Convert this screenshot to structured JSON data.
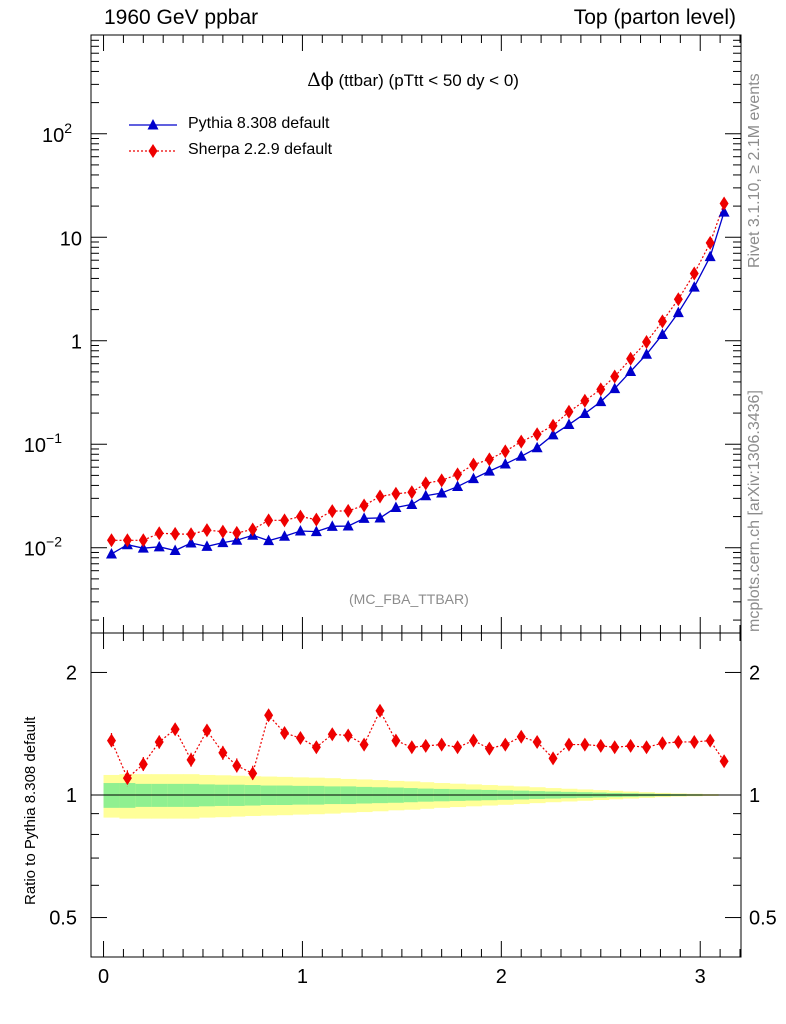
{
  "header": {
    "left": "1960 GeV ppbar",
    "right": "Top (parton level)"
  },
  "side_labels": {
    "rivet": "Rivet 3.1.10, ≥ 2.1M events",
    "mcplots": "mcplots.cern.ch [arXiv:1306.3436]"
  },
  "plot_title": {
    "symbol": "Δϕ",
    "text": " (ttbar) (pTtt < 50 dy < 0)"
  },
  "analysis_label": "(MC_FBA_TTBAR)",
  "ratio_ylabel": "Ratio to Pythia 8.308 default",
  "colors": {
    "pythia": "#0000cc",
    "sherpa": "#ee0000",
    "band_inner": "#90f090",
    "band_outer": "#ffff99"
  },
  "chart_data": [
    {
      "type": "line",
      "panel": "main",
      "yscale": "log",
      "xlim": [
        -0.063,
        3.205
      ],
      "ylim": [
        0.0015,
        900
      ],
      "x_ticks": [
        "0",
        "1",
        "2",
        "3"
      ],
      "y_ticks": [
        {
          "value": 0.01,
          "base": "10",
          "exp": "−2"
        },
        {
          "value": 0.1,
          "base": "10",
          "exp": "−1"
        },
        {
          "value": 1,
          "base": "1",
          "exp": ""
        },
        {
          "value": 10,
          "base": "10",
          "exp": ""
        },
        {
          "value": 100,
          "base": "10",
          "exp": "2"
        }
      ],
      "x": [
        0.04,
        0.12,
        0.2,
        0.28,
        0.36,
        0.44,
        0.52,
        0.6,
        0.67,
        0.75,
        0.83,
        0.91,
        0.99,
        1.07,
        1.15,
        1.23,
        1.31,
        1.39,
        1.47,
        1.55,
        1.62,
        1.7,
        1.78,
        1.86,
        1.94,
        2.02,
        2.1,
        2.18,
        2.26,
        2.34,
        2.42,
        2.5,
        2.57,
        2.65,
        2.73,
        2.81,
        2.89,
        2.97,
        3.05,
        3.12
      ],
      "series": [
        {
          "name": "Pythia 8.308 default",
          "marker": "triangle",
          "style": "solid",
          "values": [
            0.0087,
            0.0107,
            0.0099,
            0.0102,
            0.0094,
            0.0111,
            0.0103,
            0.0112,
            0.0118,
            0.0132,
            0.0117,
            0.0129,
            0.0145,
            0.0143,
            0.0161,
            0.0162,
            0.0192,
            0.0194,
            0.0245,
            0.0262,
            0.0318,
            0.0338,
            0.039,
            0.0465,
            0.055,
            0.0644,
            0.0765,
            0.0924,
            0.123,
            0.155,
            0.198,
            0.258,
            0.345,
            0.505,
            0.74,
            1.15,
            1.87,
            3.3,
            6.5,
            17.5
          ]
        },
        {
          "name": "Sherpa 2.2.9 default",
          "marker": "diamond",
          "style": "dotted",
          "values": [
            0.0118,
            0.0118,
            0.0118,
            0.0138,
            0.0136,
            0.0135,
            0.0148,
            0.0143,
            0.0139,
            0.015,
            0.0184,
            0.0184,
            0.02,
            0.0187,
            0.0226,
            0.0227,
            0.0256,
            0.0313,
            0.0332,
            0.0344,
            0.0419,
            0.0448,
            0.0511,
            0.0635,
            0.0715,
            0.0854,
            0.106,
            0.125,
            0.151,
            0.206,
            0.263,
            0.339,
            0.451,
            0.669,
            0.973,
            1.54,
            2.52,
            4.46,
            8.82,
            21.2
          ]
        }
      ]
    },
    {
      "type": "line",
      "panel": "ratio",
      "ylabel": "Ratio to Pythia 8.308 default",
      "ylim": [
        0.4,
        2.5
      ],
      "x_ticks": [
        "0",
        "1",
        "2",
        "3"
      ],
      "y_ticks": [
        {
          "value": 0.5,
          "label": "0.5"
        },
        {
          "value": 1,
          "label": "1"
        },
        {
          "value": 2,
          "label": "2"
        }
      ],
      "reference": 1,
      "band": {
        "inner_halfwidth": [
          0.07,
          0.07,
          0.065,
          0.065,
          0.065,
          0.065,
          0.062,
          0.06,
          0.06,
          0.058,
          0.055,
          0.055,
          0.053,
          0.053,
          0.05,
          0.05,
          0.047,
          0.045,
          0.043,
          0.04,
          0.037,
          0.035,
          0.033,
          0.031,
          0.029,
          0.027,
          0.025,
          0.022,
          0.02,
          0.018,
          0.016,
          0.014,
          0.012,
          0.01,
          0.008,
          0.006,
          0.005,
          0.004,
          0.003,
          0.002
        ],
        "outer_halfwidth": [
          0.12,
          0.125,
          0.125,
          0.125,
          0.125,
          0.125,
          0.12,
          0.118,
          0.115,
          0.112,
          0.11,
          0.108,
          0.105,
          0.103,
          0.1,
          0.095,
          0.092,
          0.088,
          0.083,
          0.08,
          0.075,
          0.07,
          0.066,
          0.062,
          0.058,
          0.054,
          0.05,
          0.045,
          0.04,
          0.036,
          0.032,
          0.028,
          0.024,
          0.02,
          0.016,
          0.012,
          0.009,
          0.007,
          0.005,
          0.003
        ]
      },
      "series": [
        {
          "name": "Sherpa 2.2.9 default",
          "values": [
            1.36,
            1.1,
            1.19,
            1.35,
            1.45,
            1.22,
            1.44,
            1.27,
            1.18,
            1.13,
            1.57,
            1.42,
            1.38,
            1.31,
            1.41,
            1.4,
            1.33,
            1.61,
            1.36,
            1.31,
            1.32,
            1.33,
            1.31,
            1.36,
            1.3,
            1.33,
            1.39,
            1.35,
            1.23,
            1.33,
            1.33,
            1.32,
            1.31,
            1.32,
            1.31,
            1.34,
            1.35,
            1.35,
            1.36,
            1.21
          ],
          "errors": [
            0.06,
            0.05,
            0.05,
            0.05,
            0.05,
            0.05,
            0.05,
            0.05,
            0.05,
            0.05,
            0.05,
            0.045,
            0.045,
            0.045,
            0.04,
            0.04,
            0.04,
            0.04,
            0.035,
            0.035,
            0.03,
            0.03,
            0.03,
            0.025,
            0.025,
            0.022,
            0.02,
            0.02,
            0.018,
            0.016,
            0.015,
            0.014,
            0.012,
            0.01,
            0.01,
            0.009,
            0.008,
            0.008,
            0.007,
            0.006
          ]
        }
      ]
    }
  ]
}
